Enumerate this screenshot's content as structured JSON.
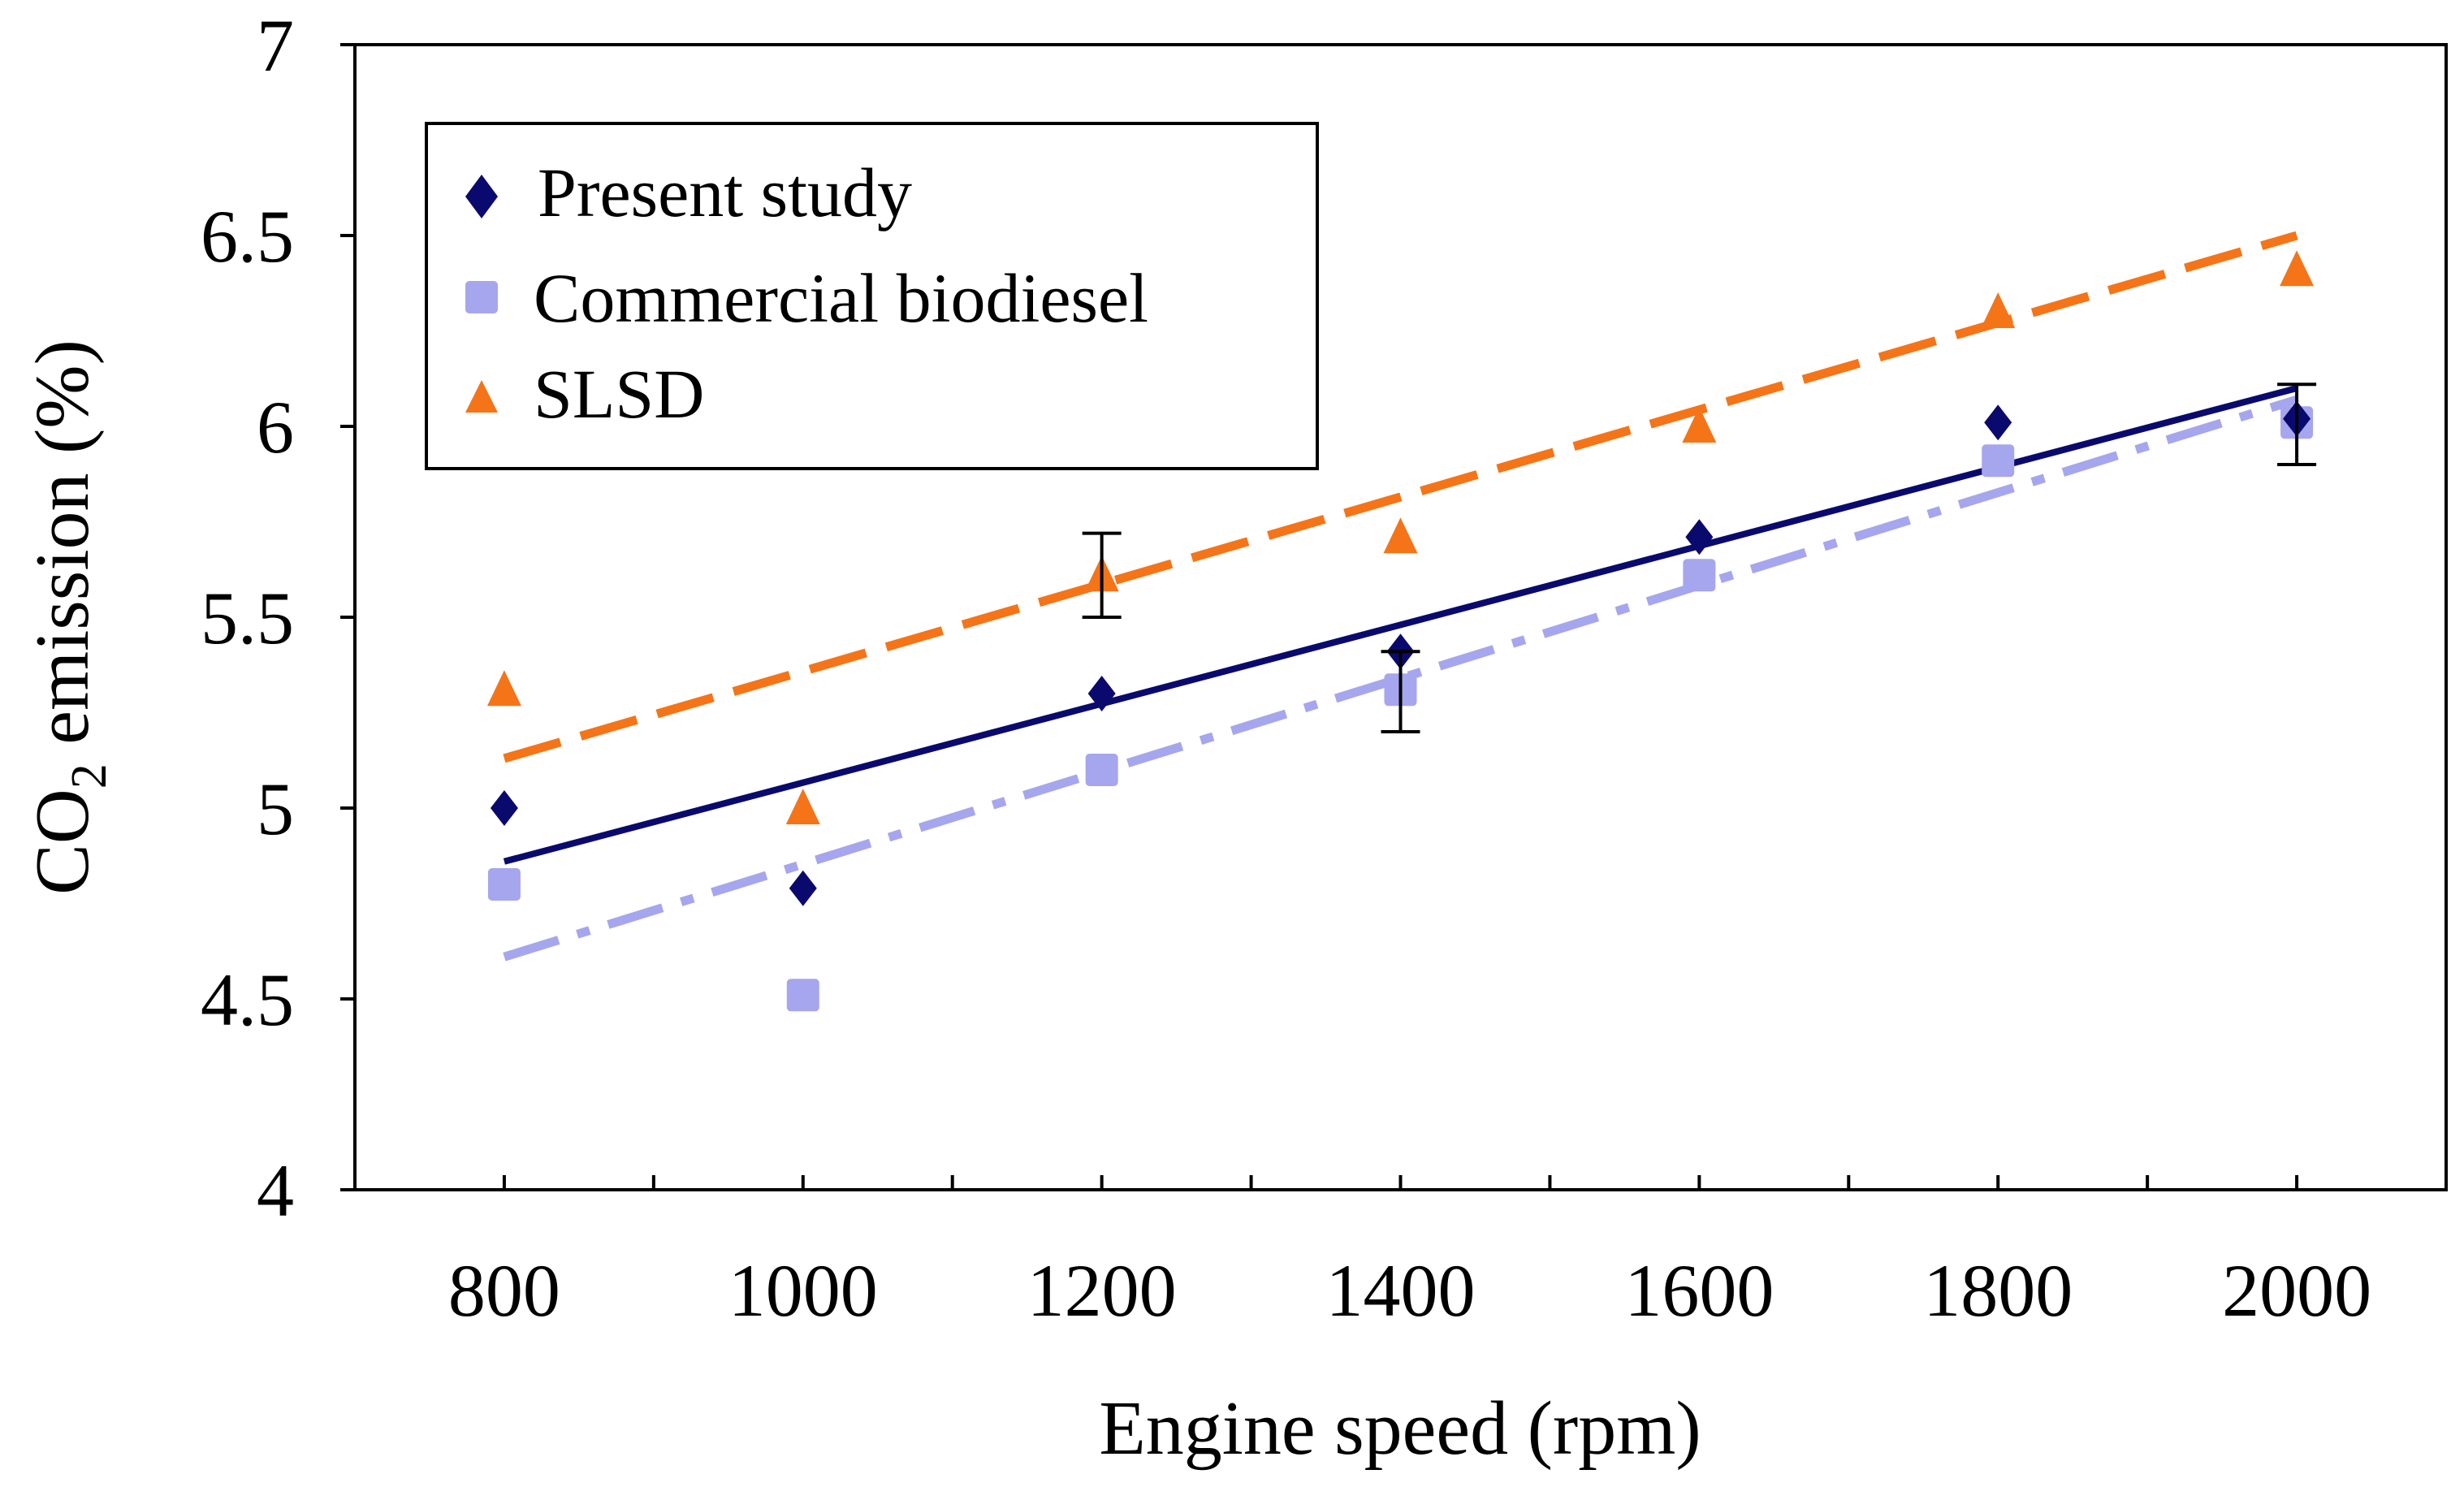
{
  "chart_data": {
    "type": "scatter",
    "xlabel": "Engine speed (rpm)",
    "ylabel_main": "CO",
    "ylabel_sub": "2",
    "ylabel_rest": " emission (%)",
    "xlim": [
      700,
      2100
    ],
    "ylim": [
      4,
      7
    ],
    "x_ticks": [
      800,
      1000,
      1200,
      1400,
      1600,
      1800,
      2000
    ],
    "x_minor_step": 100,
    "y_ticks": [
      4,
      4.5,
      5,
      5.5,
      6,
      6.5,
      7
    ],
    "y_tick_labels": [
      "4",
      "4.5",
      "5",
      "5.5",
      "6",
      "6.5",
      "7"
    ],
    "x": [
      800,
      1000,
      1200,
      1400,
      1600,
      1800,
      2000
    ],
    "legend_position": "top-left",
    "series": [
      {
        "name": "Present study",
        "marker": "diamond",
        "color": "#0a0a6e",
        "values": [
          5.0,
          4.79,
          5.3,
          5.41,
          5.71,
          6.01,
          6.02
        ],
        "trend": {
          "style": "solid",
          "x0": 800,
          "y0": 4.86,
          "x1": 2000,
          "y1": 6.1
        },
        "error_bars": [
          {
            "x": 1400,
            "low": 5.2,
            "high": 5.41
          },
          {
            "x": 2000,
            "low": 5.9,
            "high": 6.11
          }
        ]
      },
      {
        "name": "Commercial biodiesel",
        "marker": "square",
        "color": "#a6a6ee",
        "values": [
          4.8,
          4.51,
          5.1,
          5.31,
          5.61,
          5.91,
          6.01
        ],
        "trend": {
          "style": "dashdot",
          "x0": 800,
          "y0": 4.61,
          "x1": 2000,
          "y1": 6.07
        }
      },
      {
        "name": "SLSD",
        "marker": "triangle",
        "color": "#f57418",
        "values": [
          5.31,
          5.0,
          5.61,
          5.71,
          6.0,
          6.3,
          6.41
        ],
        "trend": {
          "style": "dashed",
          "x0": 800,
          "y0": 5.13,
          "x1": 2000,
          "y1": 6.5
        },
        "error_bars": [
          {
            "x": 1200,
            "low": 5.5,
            "high": 5.72
          }
        ]
      }
    ]
  }
}
